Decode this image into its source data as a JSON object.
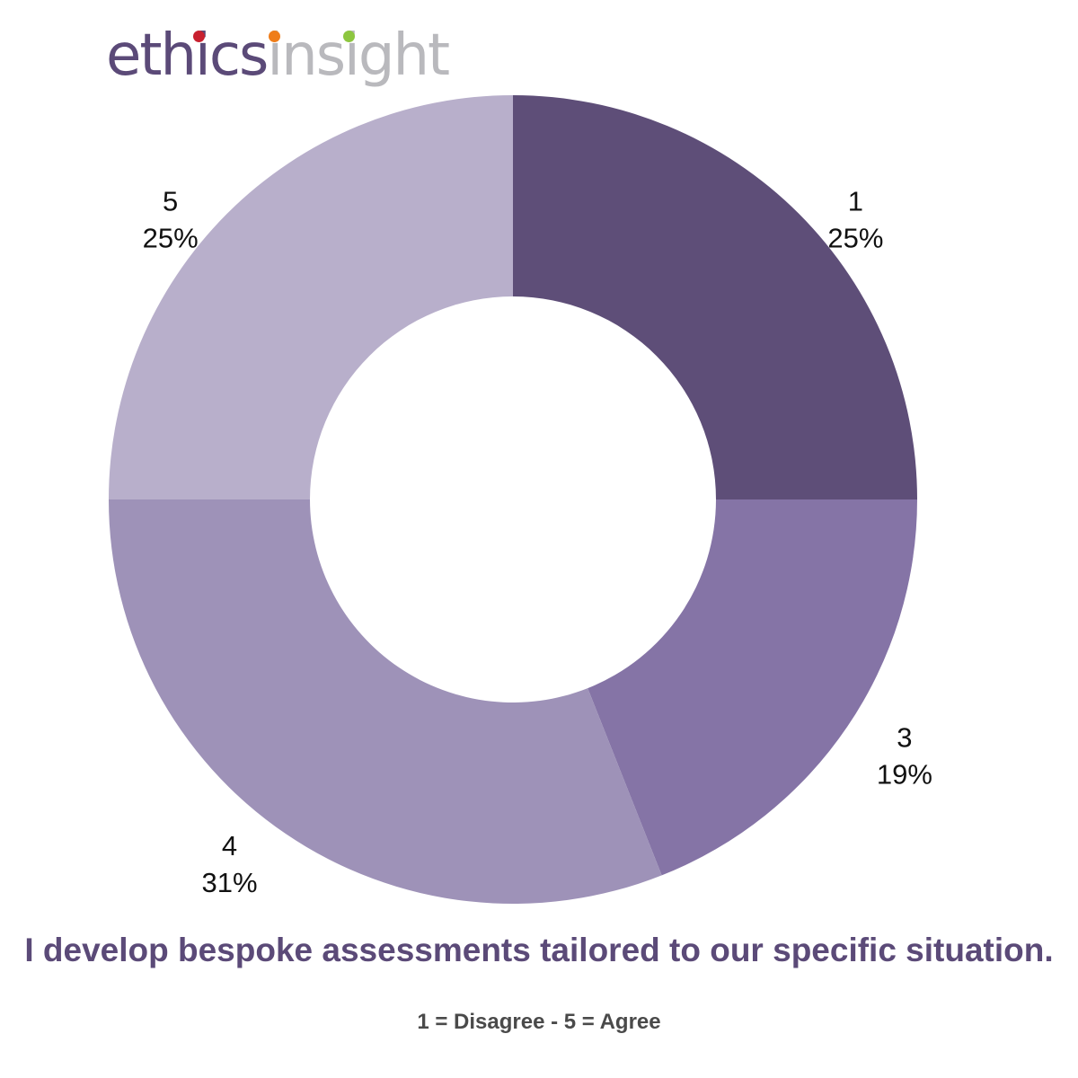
{
  "logo": {
    "word1": "ethics",
    "word2": "insight",
    "color_primary": "#5b4a78",
    "color_secondary": "#b9b9bd",
    "dot_colors": [
      "#c8202f",
      "#ef7d1a",
      "#8dc63f"
    ]
  },
  "chart_data": {
    "type": "pie",
    "subtype": "donut",
    "title": "I develop bespoke assessments tailored to our specific situation.",
    "subtitle": "1 = Disagree - 5 = Agree",
    "slices": [
      {
        "label": "1",
        "value": 25,
        "display": "25%",
        "color": "#5e4e78"
      },
      {
        "label": "3",
        "value": 19,
        "display": "19%",
        "color": "#8574a6"
      },
      {
        "label": "4",
        "value": 31,
        "display": "31%",
        "color": "#9e92b8"
      },
      {
        "label": "5",
        "value": 25,
        "display": "25%",
        "color": "#b8afcb"
      }
    ],
    "start": "top",
    "direction": "clockwise"
  }
}
